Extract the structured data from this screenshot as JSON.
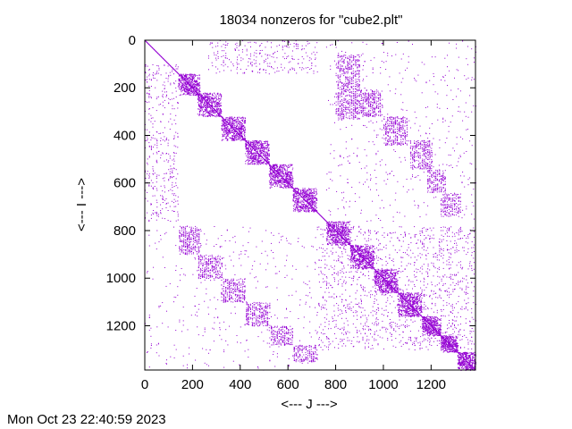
{
  "chart_data": {
    "type": "scatter",
    "title": "18034 nonzeros for \"cube2.plt\"",
    "xlabel": "<--- J --->",
    "ylabel": "<--- I --->",
    "xlim": [
      0,
      1386
    ],
    "ylim": [
      1386,
      0
    ],
    "y_axis_inverted": true,
    "x_ticks": [
      "0",
      "200",
      "400",
      "600",
      "800",
      "1000",
      "1200"
    ],
    "y_ticks": [
      "0",
      "200",
      "400",
      "600",
      "800",
      "1000",
      "1200"
    ],
    "x_tick_values": [
      0,
      200,
      400,
      600,
      800,
      1000,
      1200
    ],
    "y_tick_values": [
      0,
      200,
      400,
      600,
      800,
      1000,
      1200
    ],
    "nonzeros": 18034,
    "point_color": "#9400d3",
    "grid": false,
    "legend": "none",
    "matrix_structure": {
      "diagonal": [
        0,
        1386
      ],
      "dense_diagonal_blocks": [
        [
          140,
          230
        ],
        [
          220,
          320
        ],
        [
          320,
          420
        ],
        [
          420,
          520
        ],
        [
          520,
          620
        ],
        [
          620,
          720
        ],
        [
          760,
          860
        ],
        [
          860,
          960
        ],
        [
          960,
          1060
        ],
        [
          1060,
          1160
        ],
        [
          1160,
          1240
        ],
        [
          1240,
          1310
        ],
        [
          1310,
          1386
        ]
      ],
      "offdiagonal_blocks": [
        {
          "rows": [
            60,
            330
          ],
          "cols": [
            800,
            900
          ],
          "density": 0.28
        },
        {
          "rows": [
            210,
            320
          ],
          "cols": [
            900,
            990
          ],
          "density": 0.35
        },
        {
          "rows": [
            320,
            440
          ],
          "cols": [
            1000,
            1100
          ],
          "density": 0.32
        },
        {
          "rows": [
            420,
            540
          ],
          "cols": [
            1110,
            1200
          ],
          "density": 0.3
        },
        {
          "rows": [
            540,
            640
          ],
          "cols": [
            1180,
            1260
          ],
          "density": 0.28
        },
        {
          "rows": [
            640,
            740
          ],
          "cols": [
            1240,
            1320
          ],
          "density": 0.28
        },
        {
          "rows": [
            780,
            900
          ],
          "cols": [
            140,
            230
          ],
          "density": 0.32
        },
        {
          "rows": [
            900,
            1000
          ],
          "cols": [
            220,
            320
          ],
          "density": 0.32
        },
        {
          "rows": [
            1000,
            1100
          ],
          "cols": [
            320,
            420
          ],
          "density": 0.32
        },
        {
          "rows": [
            1100,
            1200
          ],
          "cols": [
            420,
            520
          ],
          "density": 0.32
        },
        {
          "rows": [
            1200,
            1280
          ],
          "cols": [
            520,
            620
          ],
          "density": 0.3
        },
        {
          "rows": [
            1280,
            1350
          ],
          "cols": [
            620,
            720
          ],
          "density": 0.3
        },
        {
          "rows": [
            0,
            140
          ],
          "cols": [
            260,
            720
          ],
          "density": 0.05
        },
        {
          "rows": [
            100,
            760
          ],
          "cols": [
            0,
            140
          ],
          "density": 0.05
        },
        {
          "rows": [
            780,
            1300
          ],
          "cols": [
            720,
            1386
          ],
          "density": 0.05
        },
        {
          "rows": [
            0,
            760
          ],
          "cols": [
            760,
            1386
          ],
          "density": 0.012
        },
        {
          "rows": [
            780,
            1386
          ],
          "cols": [
            0,
            720
          ],
          "density": 0.01
        }
      ]
    }
  },
  "footer": {
    "timestamp": "Mon Oct 23 22:40:59 2023"
  }
}
